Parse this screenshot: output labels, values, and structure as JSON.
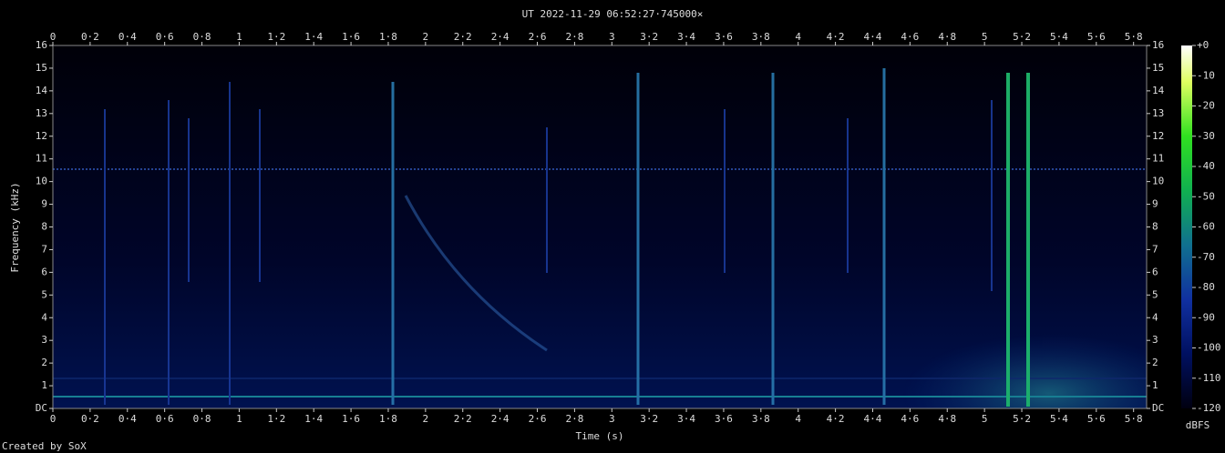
{
  "chart_data": {
    "type": "spectrogram",
    "title": "UT 2022-11-29 06:52:27·745000×",
    "xlabel": "Time (s)",
    "ylabel": "Frequency (kHz)",
    "xlim": [
      0,
      5.87
    ],
    "ylim": [
      0,
      16
    ],
    "xticks": [
      0,
      {
        "value": 0.2,
        "label": "0·2"
      },
      {
        "value": 0.4,
        "label": "0·4"
      },
      {
        "value": 0.6,
        "label": "0·6"
      },
      {
        "value": 0.8,
        "label": "0·8"
      },
      1,
      {
        "value": 1.2,
        "label": "1·2"
      },
      {
        "value": 1.4,
        "label": "1·4"
      },
      {
        "value": 1.6,
        "label": "1·6"
      },
      {
        "value": 1.8,
        "label": "1·8"
      },
      2,
      {
        "value": 2.2,
        "label": "2·2"
      },
      {
        "value": 2.4,
        "label": "2·4"
      },
      {
        "value": 2.6,
        "label": "2·6"
      },
      {
        "value": 2.8,
        "label": "2·8"
      },
      3,
      {
        "value": 3.2,
        "label": "3·2"
      },
      {
        "value": 3.4,
        "label": "3·4"
      },
      {
        "value": 3.6,
        "label": "3·6"
      },
      {
        "value": 3.8,
        "label": "3·8"
      },
      4,
      {
        "value": 4.2,
        "label": "4·2"
      },
      {
        "value": 4.4,
        "label": "4·4"
      },
      {
        "value": 4.6,
        "label": "4·6"
      },
      {
        "value": 4.8,
        "label": "4·8"
      },
      5,
      {
        "value": 5.2,
        "label": "5·2"
      },
      {
        "value": 5.4,
        "label": "5·4"
      },
      {
        "value": 5.6,
        "label": "5·6"
      },
      {
        "value": 5.8,
        "label": "5·8"
      }
    ],
    "yticks": [
      {
        "value": 0,
        "label": "DC"
      },
      1,
      2,
      3,
      4,
      5,
      6,
      7,
      8,
      9,
      10,
      11,
      12,
      13,
      14,
      15,
      16
    ],
    "colorbar": {
      "label": "dBFS",
      "lim": [
        -120,
        0
      ],
      "ticks": [
        {
          "value": 0,
          "label": "+0"
        },
        -10,
        -20,
        -30,
        -40,
        -50,
        -60,
        -70,
        -80,
        -90,
        -100,
        -110,
        -120
      ]
    }
  },
  "footer": "Created by SoX"
}
